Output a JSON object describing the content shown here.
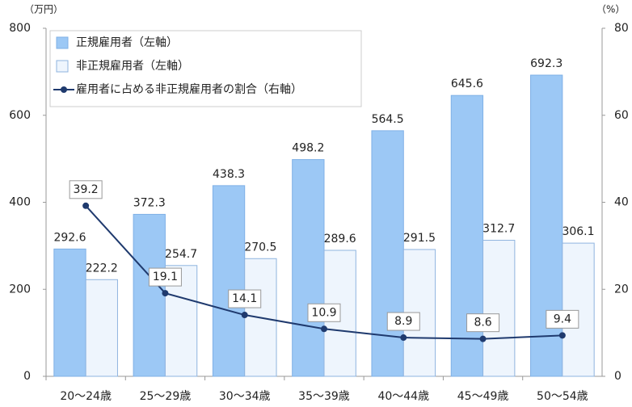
{
  "chart_data": {
    "type": "bar",
    "y_unit_label": "（万円）",
    "y2_unit_label": "（%）",
    "categories": [
      "20～24歳",
      "25～29歳",
      "30～34歳",
      "35～39歳",
      "40～44歳",
      "45～49歳",
      "50～54歳"
    ],
    "series": [
      {
        "name": "正規雇用者（左軸）",
        "type": "bar",
        "color": "#9cc8f5",
        "values": [
          292.6,
          372.3,
          438.3,
          498.2,
          564.5,
          645.6,
          692.3
        ]
      },
      {
        "name": "非正規雇用者（左軸）",
        "type": "bar",
        "color": "#eef5fd",
        "values": [
          222.2,
          254.7,
          270.5,
          289.6,
          291.5,
          312.7,
          306.1
        ]
      },
      {
        "name": "雇用者に占める非正規雇用者の割合（右軸）",
        "type": "line",
        "axis": "y2",
        "color": "#1f3a6e",
        "values": [
          39.2,
          19.1,
          14.1,
          10.9,
          8.9,
          8.6,
          9.4
        ]
      }
    ],
    "ylim": [
      0,
      800
    ],
    "yticks": [
      0,
      200,
      400,
      600,
      800
    ],
    "y2lim": [
      0,
      80
    ],
    "y2ticks": [
      0,
      20,
      40,
      60,
      80
    ],
    "legend": "top-left"
  }
}
